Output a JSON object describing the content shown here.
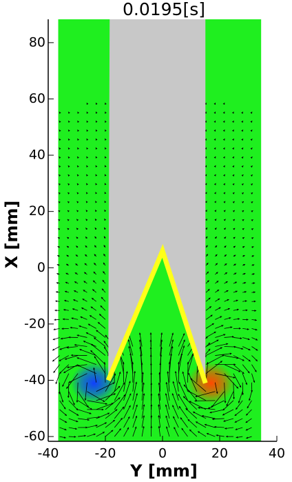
{
  "chart_data": {
    "type": "field",
    "title": "0.0195[s]",
    "xlabel": "Y [mm]",
    "ylabel": "X [mm]",
    "xlim": [
      -40,
      40
    ],
    "ylim": [
      -61.7,
      88.3
    ],
    "xticks": [
      -40,
      -20,
      0,
      20,
      40
    ],
    "yticks": [
      -60,
      -40,
      -20,
      0,
      20,
      40,
      60,
      80
    ],
    "field_extent": {
      "x": [
        -36.5,
        34.5
      ],
      "y": [
        -61.7,
        88.3
      ],
      "color": "#1fef1f"
    },
    "body": {
      "points": [
        [
          -18.5,
          88.3
        ],
        [
          15,
          88.3
        ],
        [
          15,
          -41
        ],
        [
          0,
          6
        ],
        [
          -19,
          -40
        ]
      ],
      "color": "#c8c8c8"
    },
    "edge": {
      "points": [
        [
          -19,
          -40
        ],
        [
          0,
          6
        ],
        [
          15,
          -41
        ]
      ],
      "color": "#ffff1a"
    },
    "vortices": [
      {
        "x": -24,
        "y": -41,
        "color": "#1040ff"
      },
      {
        "x": 17,
        "y": -41,
        "color": "#ff4a00"
      }
    ]
  }
}
